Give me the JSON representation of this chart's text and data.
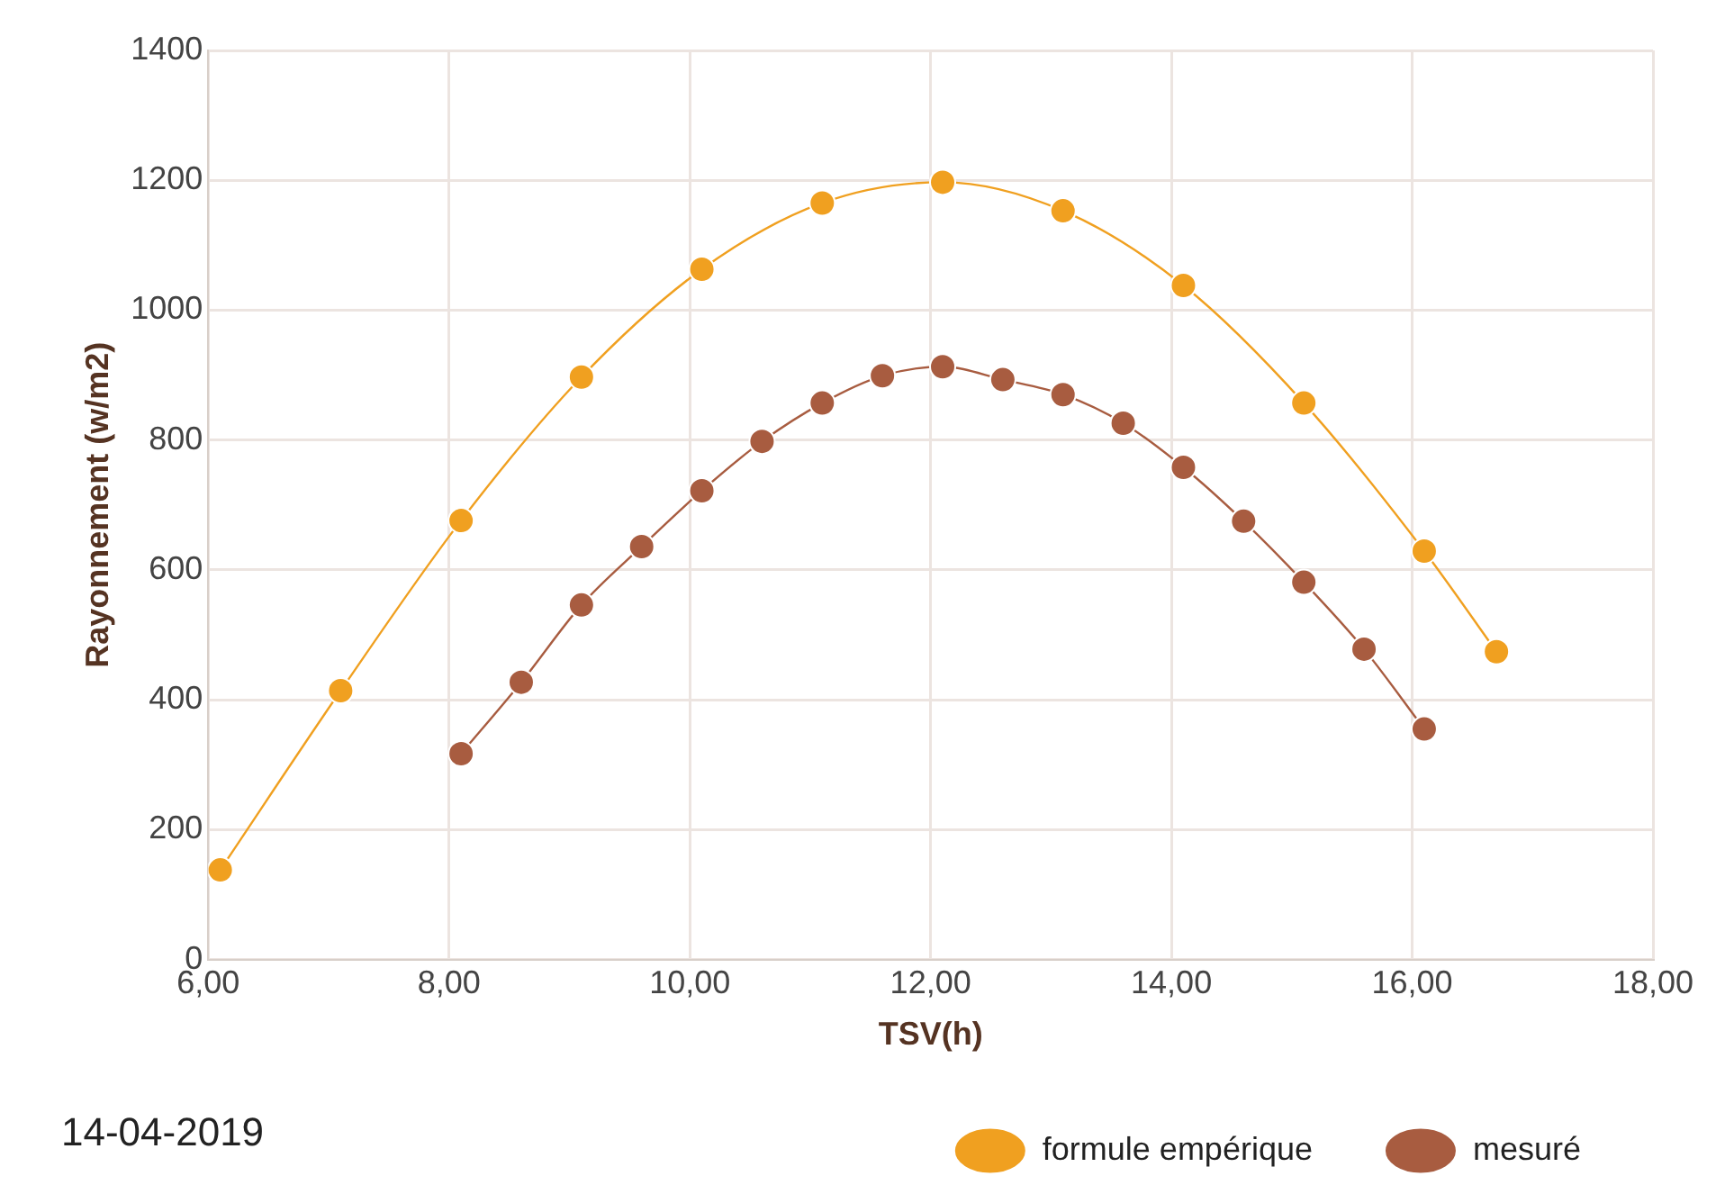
{
  "chart_data": {
    "type": "line",
    "xlabel": "TSV(h)",
    "ylabel": "Rayonnement (w/m2)",
    "xlim": [
      6,
      18
    ],
    "xticks": [
      {
        "value": 6,
        "label": "6,00"
      },
      {
        "value": 8,
        "label": "8,00"
      },
      {
        "value": 10,
        "label": "10,00"
      },
      {
        "value": 12,
        "label": "12,00"
      },
      {
        "value": 14,
        "label": "14,00"
      },
      {
        "value": 16,
        "label": "16,00"
      },
      {
        "value": 18,
        "label": "18,00"
      }
    ],
    "ylim": [
      0,
      1400
    ],
    "yticks": [
      0,
      200,
      400,
      600,
      800,
      1000,
      1200,
      1400
    ],
    "grid": true,
    "legend": "bottom right",
    "marker": "circle",
    "line_style": "solid",
    "annotations": [
      "14-04-2019"
    ],
    "series": [
      {
        "name": "formule empérique",
        "color": "#f0a020",
        "x": [
          6.1,
          7.1,
          8.1,
          9.1,
          10.1,
          11.1,
          12.1,
          13.1,
          14.1,
          15.1,
          16.1,
          16.7
        ],
        "values": [
          138,
          414,
          676,
          897,
          1063,
          1165,
          1197,
          1153,
          1038,
          857,
          629,
          474
        ]
      },
      {
        "name": "mesuré",
        "color": "#a85c40",
        "x": [
          8.1,
          8.6,
          9.1,
          9.6,
          10.1,
          10.6,
          11.1,
          11.6,
          12.1,
          12.6,
          13.1,
          13.6,
          14.1,
          14.6,
          15.1,
          15.6,
          16.1
        ],
        "values": [
          317,
          427,
          546,
          636,
          722,
          798,
          857,
          899,
          913,
          893,
          870,
          826,
          758,
          675,
          581,
          478,
          355
        ]
      }
    ]
  }
}
